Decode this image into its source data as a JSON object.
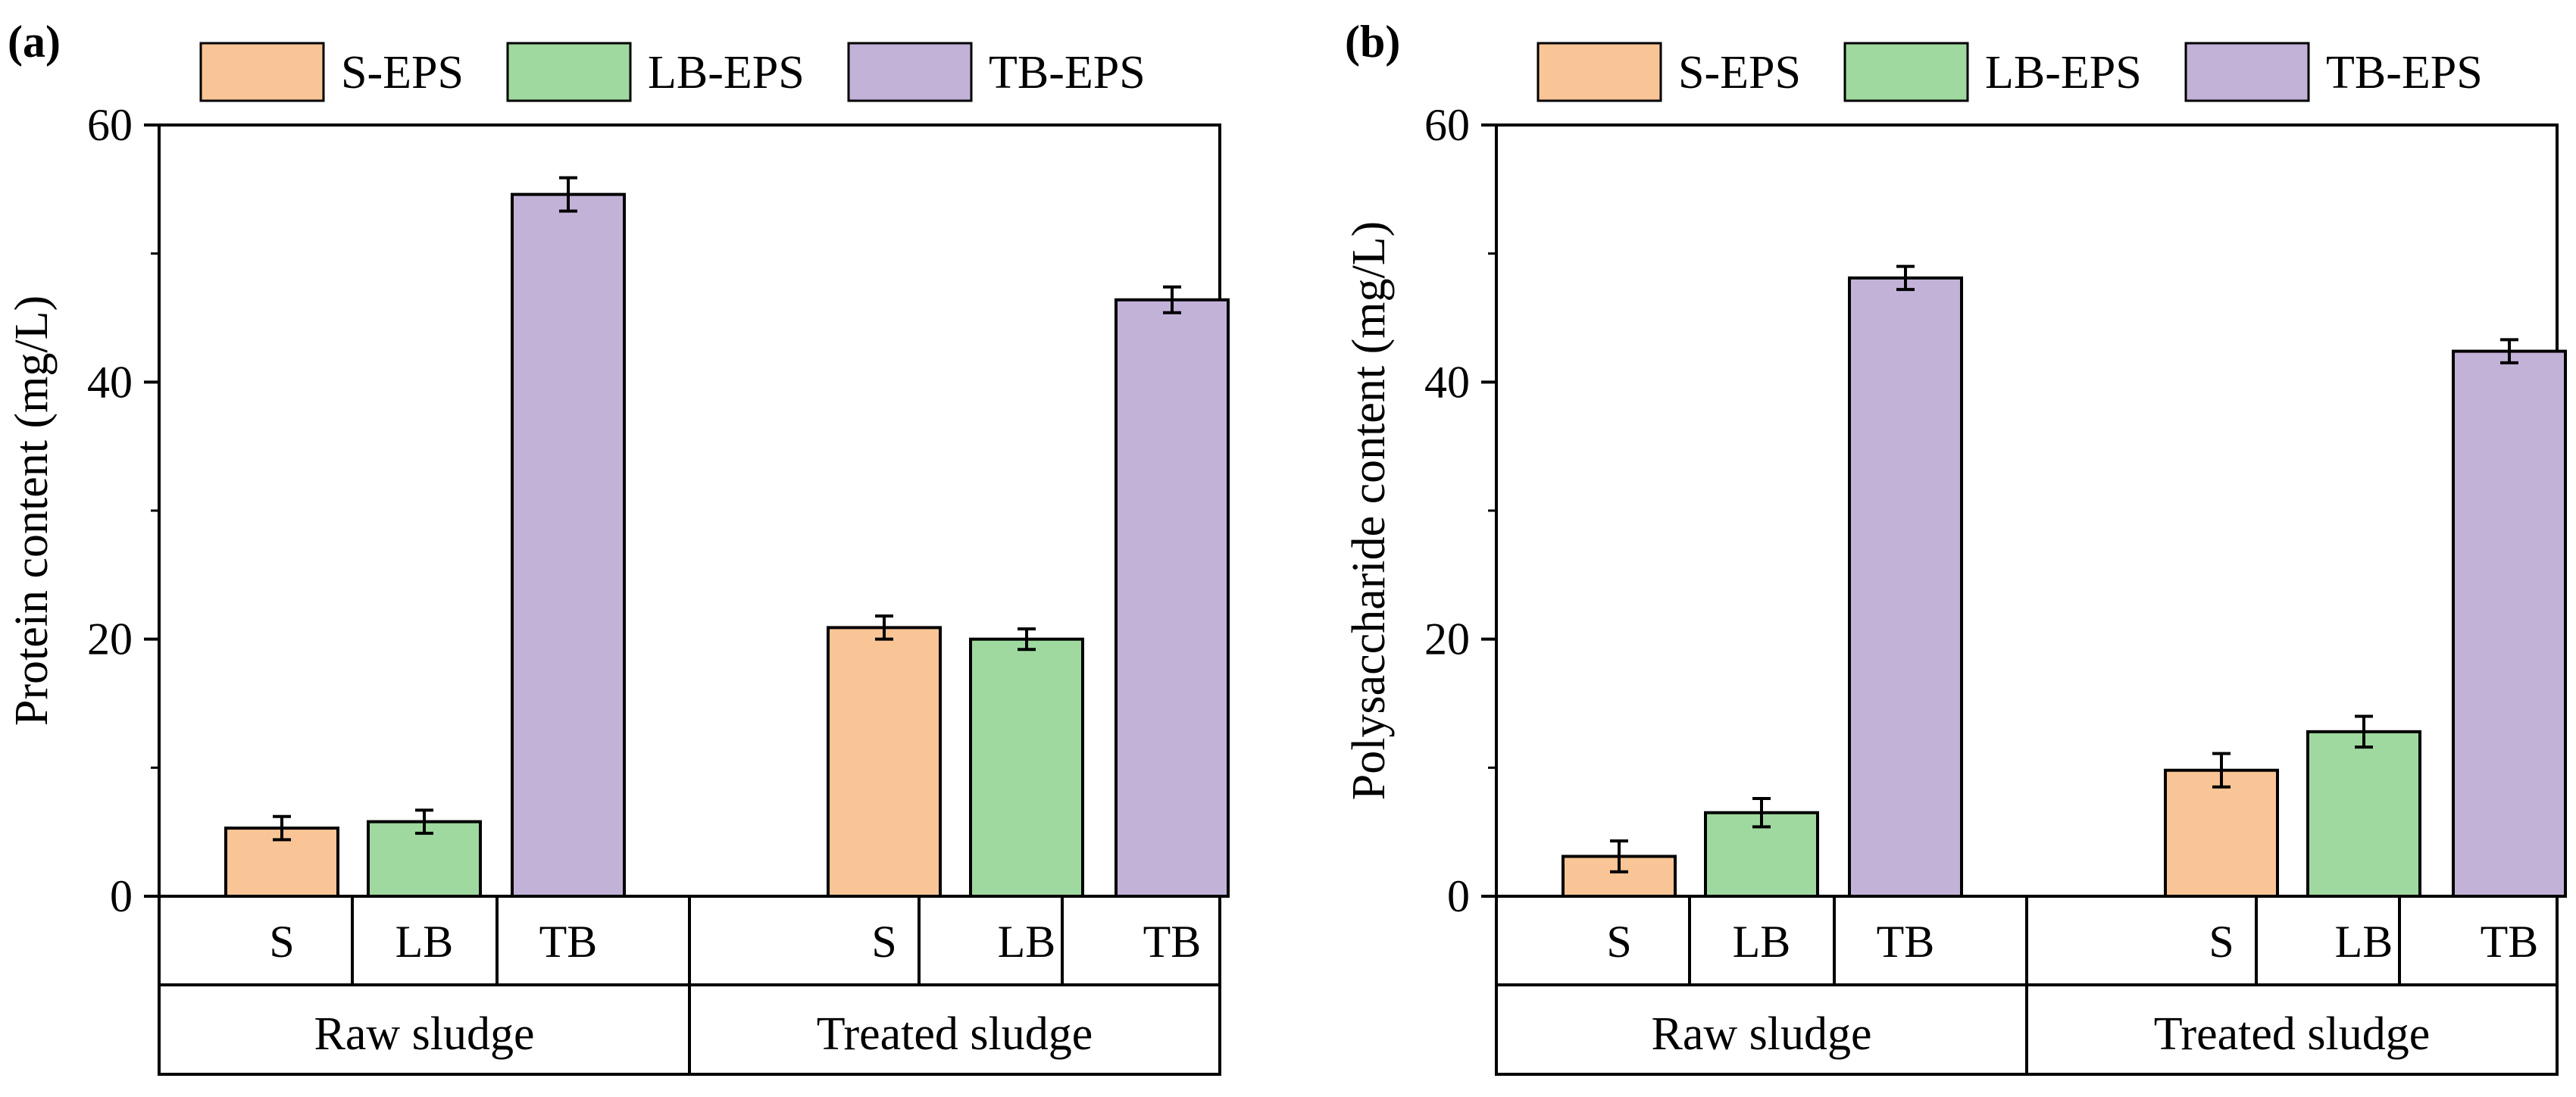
{
  "legend": [
    {
      "name": "S-EPS",
      "color": "#F9C596"
    },
    {
      "name": "LB-EPS",
      "color": "#9FD99F"
    },
    {
      "name": "TB-EPS",
      "color": "#C2B2D8"
    }
  ],
  "chart_data": [
    {
      "type": "bar",
      "panel_label": "(a)",
      "ylabel": "Protein content (mg/L)",
      "ylim": [
        0,
        60
      ],
      "yticks": [
        0,
        20,
        40,
        60
      ],
      "groups": [
        {
          "name": "Raw sludge",
          "bars": [
            {
              "category": "S",
              "series": "S-EPS",
              "value": 5.3,
              "error": 0.9
            },
            {
              "category": "LB",
              "series": "LB-EPS",
              "value": 5.8,
              "error": 0.9
            },
            {
              "category": "TB",
              "series": "TB-EPS",
              "value": 54.6,
              "error": 1.3
            }
          ]
        },
        {
          "name": "Treated sludge",
          "bars": [
            {
              "category": "S",
              "series": "S-EPS",
              "value": 20.9,
              "error": 0.9
            },
            {
              "category": "LB",
              "series": "LB-EPS",
              "value": 20.0,
              "error": 0.8
            },
            {
              "category": "TB",
              "series": "TB-EPS",
              "value": 46.4,
              "error": 1.0
            }
          ]
        }
      ]
    },
    {
      "type": "bar",
      "panel_label": "(b)",
      "ylabel": "Polysaccharide content (mg/L)",
      "ylim": [
        0,
        60
      ],
      "yticks": [
        0,
        20,
        40,
        60
      ],
      "groups": [
        {
          "name": "Raw sludge",
          "bars": [
            {
              "category": "S",
              "series": "S-EPS",
              "value": 3.1,
              "error": 1.2
            },
            {
              "category": "LB",
              "series": "LB-EPS",
              "value": 6.5,
              "error": 1.1
            },
            {
              "category": "TB",
              "series": "TB-EPS",
              "value": 48.1,
              "error": 0.9
            }
          ]
        },
        {
          "name": "Treated sludge",
          "bars": [
            {
              "category": "S",
              "series": "S-EPS",
              "value": 9.8,
              "error": 1.3
            },
            {
              "category": "LB",
              "series": "LB-EPS",
              "value": 12.8,
              "error": 1.2
            },
            {
              "category": "TB",
              "series": "TB-EPS",
              "value": 42.4,
              "error": 0.9
            }
          ]
        }
      ]
    }
  ]
}
